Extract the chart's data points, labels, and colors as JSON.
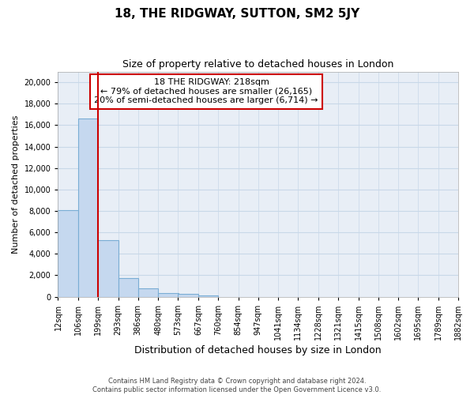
{
  "title": "18, THE RIDGWAY, SUTTON, SM2 5JY",
  "subtitle": "Size of property relative to detached houses in London",
  "xlabel": "Distribution of detached houses by size in London",
  "ylabel": "Number of detached properties",
  "footer_line1": "Contains HM Land Registry data © Crown copyright and database right 2024.",
  "footer_line2": "Contains public sector information licensed under the Open Government Licence v3.0.",
  "annotation_title": "18 THE RIDGWAY: 218sqm",
  "annotation_line1": "← 79% of detached houses are smaller (26,165)",
  "annotation_line2": "20% of semi-detached houses are larger (6,714) →",
  "property_size_bin": 199,
  "bar_edges": [
    12,
    106,
    199,
    293,
    386,
    480,
    573,
    667,
    760,
    854,
    947,
    1041,
    1134,
    1228,
    1321,
    1415,
    1508,
    1602,
    1695,
    1789,
    1882
  ],
  "bar_heights": [
    8100,
    16600,
    5300,
    1750,
    800,
    300,
    250,
    100,
    0,
    0,
    0,
    0,
    0,
    0,
    0,
    0,
    0,
    0,
    0,
    0
  ],
  "bar_color": "#c5d8ef",
  "bar_edge_color": "#7aadd4",
  "redline_color": "#cc0000",
  "annotation_box_color": "#cc0000",
  "grid_color": "#c8d8e8",
  "background_color": "#e8eef6",
  "ylim": [
    0,
    21000
  ],
  "yticks": [
    0,
    2000,
    4000,
    6000,
    8000,
    10000,
    12000,
    14000,
    16000,
    18000,
    20000
  ],
  "title_fontsize": 11,
  "subtitle_fontsize": 9,
  "ylabel_fontsize": 8,
  "xlabel_fontsize": 9,
  "tick_fontsize": 7,
  "annotation_fontsize": 8
}
